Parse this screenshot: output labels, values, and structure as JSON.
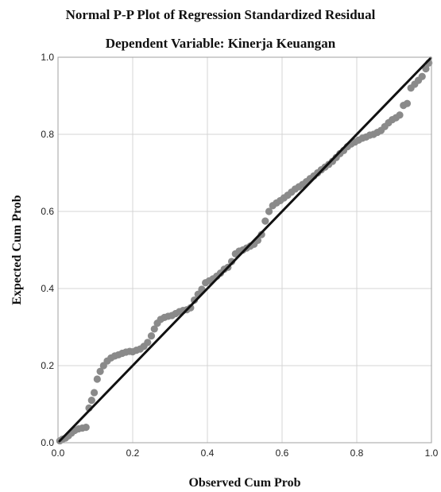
{
  "chart_data": {
    "type": "scatter",
    "title": "Normal P-P Plot of Regression Standardized Residual",
    "subtitle": "Dependent Variable: Kinerja Keuangan",
    "xlabel": "Observed Cum Prob",
    "ylabel": "Expected Cum Prob",
    "xlim": [
      0,
      1
    ],
    "ylim": [
      0,
      1
    ],
    "xticks": [
      "0.0",
      "0.2",
      "0.4",
      "0.6",
      "0.8",
      "1.0"
    ],
    "yticks": [
      "0.0",
      "0.2",
      "0.4",
      "0.6",
      "0.8",
      "1.0"
    ],
    "grid": true,
    "reference_line": [
      [
        0,
        0
      ],
      [
        1,
        1
      ]
    ],
    "colors": {
      "points": "#8a8a8a",
      "line": "#111111",
      "grid": "#d4d4d4",
      "frame": "#a0a0a0"
    },
    "points": [
      [
        0.005,
        0.005
      ],
      [
        0.012,
        0.009
      ],
      [
        0.02,
        0.012
      ],
      [
        0.028,
        0.018
      ],
      [
        0.036,
        0.025
      ],
      [
        0.045,
        0.032
      ],
      [
        0.055,
        0.036
      ],
      [
        0.065,
        0.038
      ],
      [
        0.075,
        0.04
      ],
      [
        0.083,
        0.09
      ],
      [
        0.09,
        0.11
      ],
      [
        0.097,
        0.13
      ],
      [
        0.105,
        0.165
      ],
      [
        0.113,
        0.185
      ],
      [
        0.122,
        0.2
      ],
      [
        0.132,
        0.212
      ],
      [
        0.142,
        0.22
      ],
      [
        0.152,
        0.225
      ],
      [
        0.162,
        0.228
      ],
      [
        0.172,
        0.232
      ],
      [
        0.182,
        0.235
      ],
      [
        0.192,
        0.237
      ],
      [
        0.2,
        0.236
      ],
      [
        0.21,
        0.24
      ],
      [
        0.22,
        0.243
      ],
      [
        0.23,
        0.25
      ],
      [
        0.24,
        0.26
      ],
      [
        0.25,
        0.277
      ],
      [
        0.258,
        0.295
      ],
      [
        0.266,
        0.31
      ],
      [
        0.275,
        0.32
      ],
      [
        0.285,
        0.325
      ],
      [
        0.295,
        0.328
      ],
      [
        0.305,
        0.33
      ],
      [
        0.315,
        0.335
      ],
      [
        0.325,
        0.34
      ],
      [
        0.335,
        0.343
      ],
      [
        0.345,
        0.345
      ],
      [
        0.355,
        0.35
      ],
      [
        0.365,
        0.37
      ],
      [
        0.375,
        0.385
      ],
      [
        0.385,
        0.398
      ],
      [
        0.395,
        0.415
      ],
      [
        0.405,
        0.42
      ],
      [
        0.415,
        0.425
      ],
      [
        0.425,
        0.432
      ],
      [
        0.435,
        0.44
      ],
      [
        0.445,
        0.45
      ],
      [
        0.455,
        0.455
      ],
      [
        0.465,
        0.47
      ],
      [
        0.475,
        0.49
      ],
      [
        0.485,
        0.497
      ],
      [
        0.495,
        0.5
      ],
      [
        0.505,
        0.505
      ],
      [
        0.515,
        0.51
      ],
      [
        0.525,
        0.515
      ],
      [
        0.535,
        0.525
      ],
      [
        0.545,
        0.54
      ],
      [
        0.555,
        0.575
      ],
      [
        0.565,
        0.6
      ],
      [
        0.575,
        0.615
      ],
      [
        0.585,
        0.622
      ],
      [
        0.595,
        0.628
      ],
      [
        0.605,
        0.635
      ],
      [
        0.615,
        0.642
      ],
      [
        0.625,
        0.65
      ],
      [
        0.635,
        0.658
      ],
      [
        0.645,
        0.664
      ],
      [
        0.655,
        0.67
      ],
      [
        0.665,
        0.677
      ],
      [
        0.675,
        0.685
      ],
      [
        0.685,
        0.692
      ],
      [
        0.695,
        0.7
      ],
      [
        0.705,
        0.708
      ],
      [
        0.715,
        0.715
      ],
      [
        0.725,
        0.722
      ],
      [
        0.735,
        0.73
      ],
      [
        0.745,
        0.74
      ],
      [
        0.755,
        0.75
      ],
      [
        0.765,
        0.758
      ],
      [
        0.775,
        0.768
      ],
      [
        0.785,
        0.775
      ],
      [
        0.795,
        0.78
      ],
      [
        0.805,
        0.785
      ],
      [
        0.815,
        0.79
      ],
      [
        0.825,
        0.793
      ],
      [
        0.835,
        0.798
      ],
      [
        0.845,
        0.8
      ],
      [
        0.855,
        0.805
      ],
      [
        0.865,
        0.81
      ],
      [
        0.875,
        0.82
      ],
      [
        0.885,
        0.83
      ],
      [
        0.895,
        0.838
      ],
      [
        0.905,
        0.843
      ],
      [
        0.915,
        0.85
      ],
      [
        0.925,
        0.875
      ],
      [
        0.935,
        0.88
      ],
      [
        0.945,
        0.92
      ],
      [
        0.955,
        0.93
      ],
      [
        0.965,
        0.94
      ],
      [
        0.975,
        0.95
      ],
      [
        0.985,
        0.97
      ],
      [
        0.993,
        0.985
      ]
    ]
  }
}
